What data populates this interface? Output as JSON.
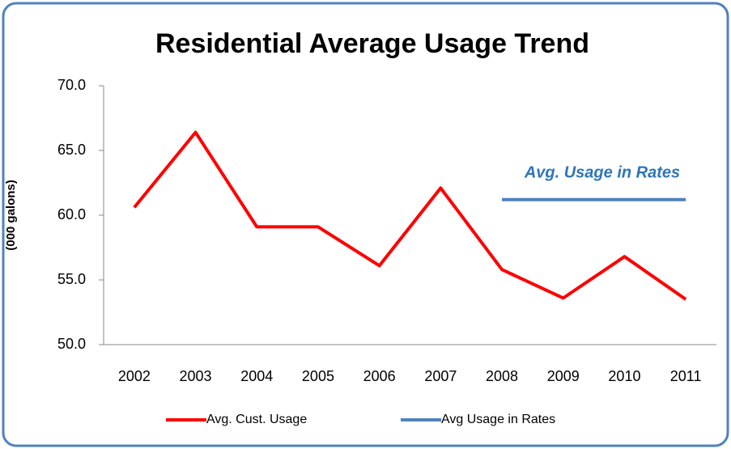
{
  "chart_data": {
    "type": "line",
    "title": "Residential  Average Usage Trend",
    "y_label": "(000 galons)",
    "annotation": "Avg. Usage in Rates",
    "categories": [
      "2002",
      "2003",
      "2004",
      "2005",
      "2006",
      "2007",
      "2008",
      "2009",
      "2010",
      "2011"
    ],
    "series": [
      {
        "name": "Avg. Cust.  Usage",
        "color": "#ff0000",
        "values": [
          60.6,
          66.4,
          59.1,
          59.1,
          56.1,
          62.1,
          55.8,
          53.6,
          56.8,
          53.5
        ]
      },
      {
        "name": "Avg Usage  in Rates",
        "color": "#4f81bd",
        "values": [
          null,
          null,
          null,
          null,
          null,
          null,
          61.2,
          61.2,
          61.2,
          61.2
        ]
      }
    ],
    "ylim": [
      50,
      70
    ],
    "yticks": [
      {
        "value": 50,
        "label": "50.0"
      },
      {
        "value": 55,
        "label": "55.0"
      },
      {
        "value": 60,
        "label": "60.0"
      },
      {
        "value": 65,
        "label": "65.0"
      },
      {
        "value": 70,
        "label": "70.0"
      }
    ],
    "legend": "bottom",
    "grid": false
  }
}
